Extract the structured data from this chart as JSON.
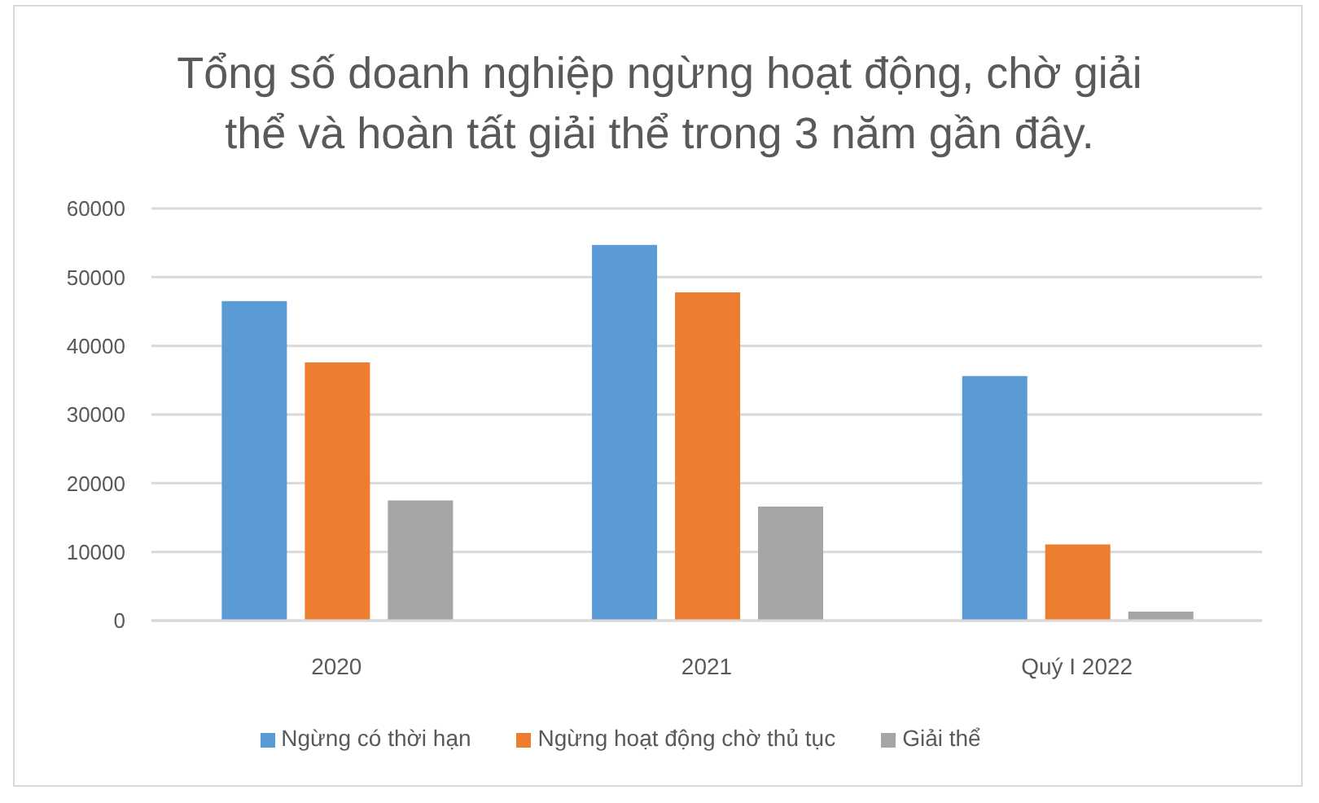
{
  "chart_data": {
    "type": "bar",
    "title": "Tổng số doanh nghiệp ngừng hoạt động, chờ giải thể và hoàn tất giải thể trong 3 năm gần đây.",
    "categories": [
      "2020",
      "2021",
      "Quý I 2022"
    ],
    "series": [
      {
        "name": "Ngừng có thời hạn",
        "color": "#5b9bd5",
        "values": [
          46500,
          54700,
          35600
        ]
      },
      {
        "name": "Ngừng hoạt động chờ thủ tục",
        "color": "#ed7d31",
        "values": [
          37600,
          47800,
          11100
        ]
      },
      {
        "name": "Giải thể",
        "color": "#a5a5a5",
        "values": [
          17500,
          16600,
          1300
        ]
      }
    ],
    "ylim": [
      0,
      60000
    ],
    "yticks": [
      0,
      10000,
      20000,
      30000,
      40000,
      50000,
      60000
    ],
    "grid": "y",
    "legend": "bottom"
  }
}
